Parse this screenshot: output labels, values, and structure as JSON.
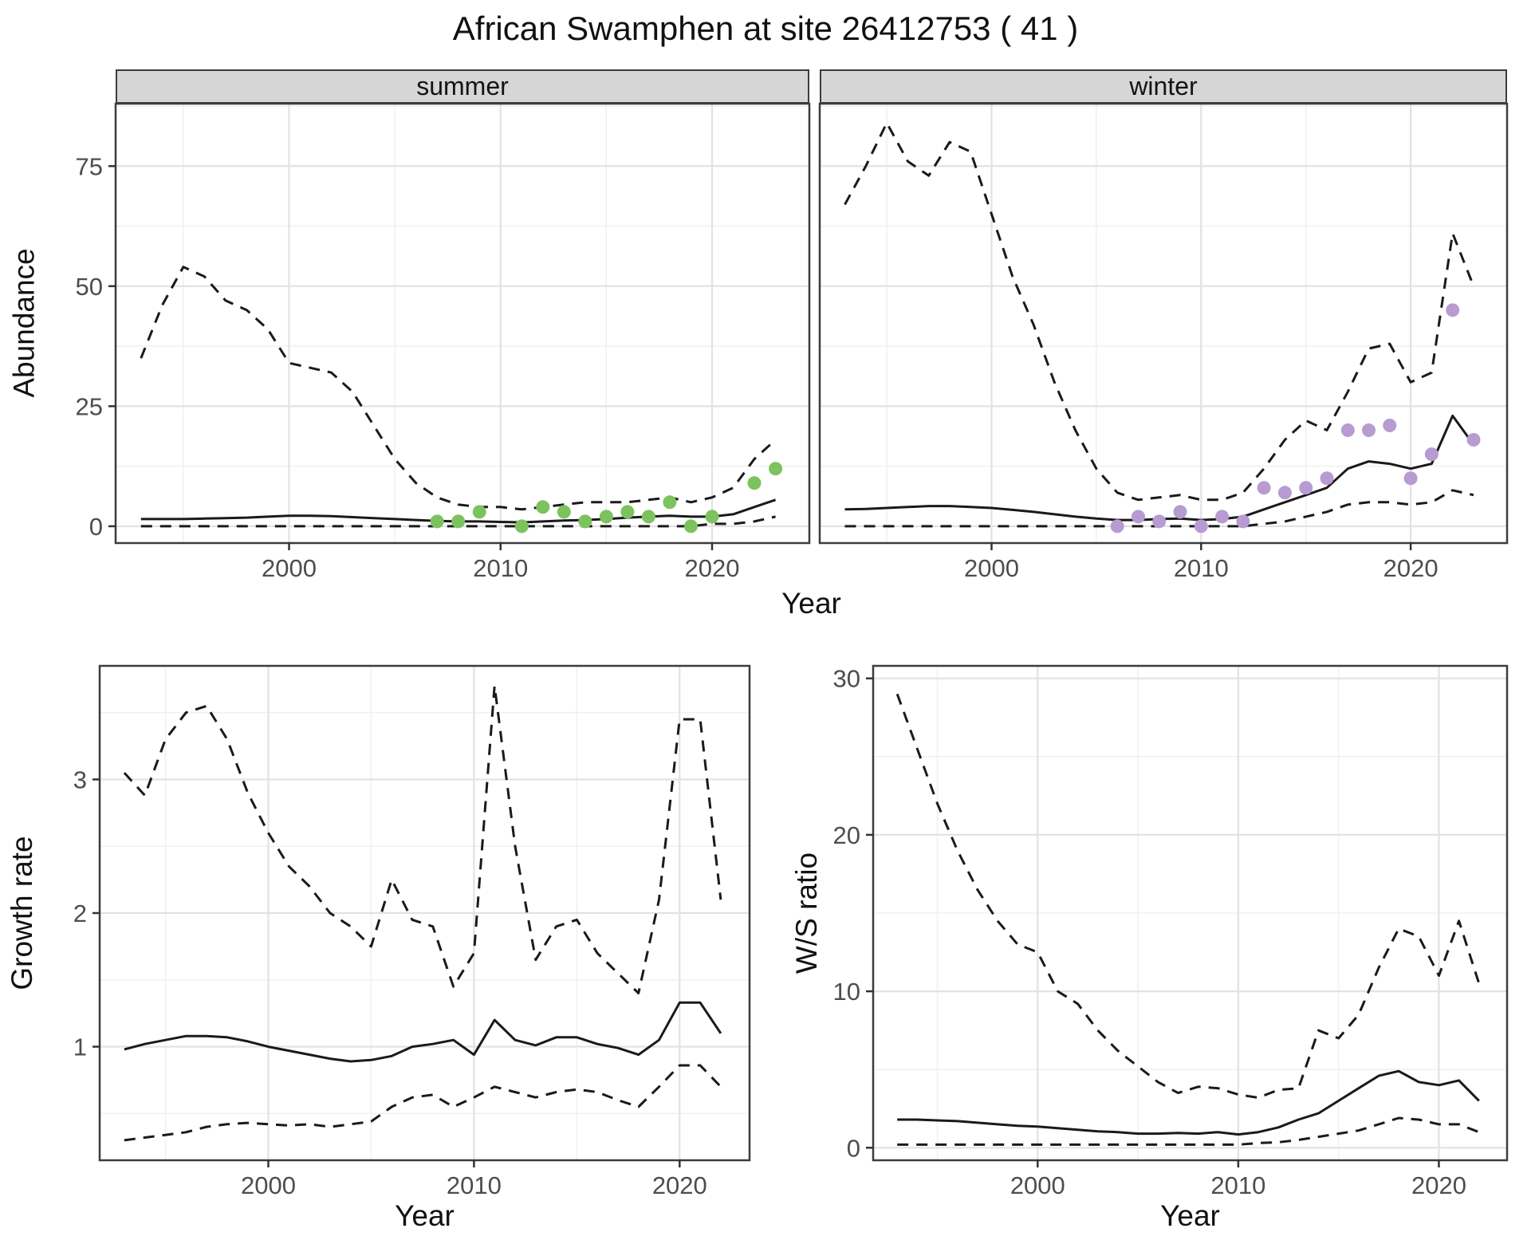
{
  "labels": {
    "title": "African Swamphen at site 26412753 ( 41 )",
    "xlabel": "Year",
    "abundance_ylabel": "Abundance",
    "growth_ylabel": "Growth rate",
    "ws_ylabel": "W/S ratio",
    "facet_summer": "summer",
    "facet_winter": "winter"
  },
  "colors": {
    "summer_points": "#7CC25E",
    "winter_points": "#B79BD1",
    "line": "#1a1a1a",
    "strip_background": "#d6d6d6",
    "grid_major": "#e2e2e2",
    "grid_minor": "#f0f0f0"
  },
  "chart_data": [
    {
      "id": "abundance-summer",
      "type": "line",
      "facet": "summer",
      "title": "summer",
      "xlabel": "Year",
      "ylabel": "Abundance",
      "xlim": [
        1991.8,
        2024.6
      ],
      "ylim": [
        -3.5,
        88
      ],
      "x_ticks": [
        2000,
        2010,
        2020
      ],
      "y_ticks": [
        0,
        25,
        50,
        75
      ],
      "grid": true,
      "x": [
        1993,
        1994,
        1995,
        1996,
        1997,
        1998,
        1999,
        2000,
        2001,
        2002,
        2003,
        2004,
        2005,
        2006,
        2007,
        2008,
        2009,
        2010,
        2011,
        2012,
        2013,
        2014,
        2015,
        2016,
        2017,
        2018,
        2019,
        2020,
        2021,
        2022,
        2023
      ],
      "series": [
        {
          "name": "median",
          "style": "solid",
          "values": [
            1.5,
            1.5,
            1.5,
            1.6,
            1.7,
            1.8,
            2.0,
            2.2,
            2.2,
            2.1,
            1.9,
            1.7,
            1.5,
            1.3,
            1.1,
            1.0,
            1.0,
            0.9,
            0.8,
            1.0,
            1.2,
            1.3,
            1.5,
            1.8,
            2.0,
            2.2,
            2.0,
            2.0,
            2.5,
            4.0,
            5.5
          ]
        },
        {
          "name": "upper-ci",
          "style": "dashed",
          "values": [
            35,
            46,
            54,
            52,
            47,
            45,
            41,
            34,
            33,
            32,
            28,
            21,
            14,
            9,
            6,
            4.5,
            4,
            4,
            3.5,
            4,
            4.5,
            5,
            5,
            5,
            5.5,
            6,
            5,
            6,
            8,
            14,
            18
          ]
        },
        {
          "name": "lower-ci",
          "style": "dashed",
          "values": [
            0,
            0,
            0,
            0,
            0,
            0,
            0,
            0,
            0,
            0,
            0,
            0,
            0,
            0,
            0,
            0,
            0,
            0,
            0,
            0,
            0,
            0,
            0,
            0,
            0,
            0,
            0,
            0.5,
            0.5,
            1,
            2
          ]
        }
      ],
      "points": {
        "name": "observed-counts-summer",
        "color": "#7CC25E",
        "x": [
          2007,
          2008,
          2009,
          2011,
          2012,
          2013,
          2014,
          2015,
          2016,
          2017,
          2018,
          2019,
          2020,
          2022,
          2023
        ],
        "y": [
          1,
          1,
          3,
          0,
          4,
          3,
          1,
          2,
          3,
          2,
          5,
          0,
          2,
          9,
          12
        ]
      }
    },
    {
      "id": "abundance-winter",
      "type": "line",
      "facet": "winter",
      "title": "winter",
      "xlabel": "Year",
      "ylabel": "Abundance",
      "xlim": [
        1991.8,
        2024.6
      ],
      "ylim": [
        -3.5,
        88
      ],
      "x_ticks": [
        2000,
        2010,
        2020
      ],
      "y_ticks": [
        0,
        25,
        50,
        75
      ],
      "grid": true,
      "x": [
        1993,
        1994,
        1995,
        1996,
        1997,
        1998,
        1999,
        2000,
        2001,
        2002,
        2003,
        2004,
        2005,
        2006,
        2007,
        2008,
        2009,
        2010,
        2011,
        2012,
        2013,
        2014,
        2015,
        2016,
        2017,
        2018,
        2019,
        2020,
        2021,
        2022,
        2023
      ],
      "series": [
        {
          "name": "median",
          "style": "solid",
          "values": [
            3.5,
            3.6,
            3.8,
            4.0,
            4.2,
            4.2,
            4.0,
            3.8,
            3.4,
            3.0,
            2.5,
            2.0,
            1.6,
            1.3,
            1.3,
            1.5,
            1.6,
            1.3,
            1.5,
            2.0,
            3.5,
            5.0,
            6.5,
            8.0,
            12.0,
            13.5,
            13.0,
            12.0,
            13.0,
            23.0,
            17.0
          ]
        },
        {
          "name": "upper-ci",
          "style": "dashed",
          "values": [
            67,
            75,
            84,
            76,
            73,
            80,
            78,
            65,
            52,
            42,
            30,
            20,
            12,
            7,
            5.5,
            6,
            6.5,
            5.5,
            5.5,
            7,
            12,
            18,
            22,
            20,
            28,
            37,
            38,
            30,
            32,
            61,
            50
          ]
        },
        {
          "name": "lower-ci",
          "style": "dashed",
          "values": [
            0,
            0,
            0,
            0,
            0,
            0,
            0,
            0,
            0,
            0,
            0,
            0,
            0,
            0,
            0,
            0,
            0,
            0,
            0,
            0,
            0.5,
            1,
            2,
            3,
            4.5,
            5,
            5,
            4.5,
            5,
            7.5,
            6.5
          ]
        }
      ],
      "points": {
        "name": "observed-counts-winter",
        "color": "#B79BD1",
        "x": [
          2006,
          2007,
          2008,
          2009,
          2010,
          2011,
          2012,
          2013,
          2014,
          2015,
          2016,
          2017,
          2018,
          2019,
          2020,
          2021,
          2022,
          2023
        ],
        "y": [
          0,
          2,
          1,
          3,
          0,
          2,
          1,
          8,
          7,
          8,
          10,
          20,
          20,
          21,
          10,
          15,
          45,
          18
        ]
      }
    },
    {
      "id": "growth-rate",
      "type": "line",
      "title": "Growth rate",
      "xlabel": "Year",
      "ylabel": "Growth rate",
      "xlim": [
        1991.8,
        2023.4
      ],
      "ylim": [
        0.15,
        3.85
      ],
      "x_ticks": [
        2000,
        2010,
        2020
      ],
      "y_ticks": [
        1,
        2,
        3
      ],
      "grid": true,
      "x": [
        1993,
        1994,
        1995,
        1996,
        1997,
        1998,
        1999,
        2000,
        2001,
        2002,
        2003,
        2004,
        2005,
        2006,
        2007,
        2008,
        2009,
        2010,
        2011,
        2012,
        2013,
        2014,
        2015,
        2016,
        2017,
        2018,
        2019,
        2020,
        2021,
        2022
      ],
      "series": [
        {
          "name": "median",
          "style": "solid",
          "values": [
            0.98,
            1.02,
            1.05,
            1.08,
            1.08,
            1.07,
            1.04,
            1.0,
            0.97,
            0.94,
            0.91,
            0.89,
            0.9,
            0.93,
            1.0,
            1.02,
            1.05,
            0.94,
            1.2,
            1.05,
            1.01,
            1.07,
            1.07,
            1.02,
            0.99,
            0.94,
            1.05,
            1.33,
            1.33,
            1.1
          ]
        },
        {
          "name": "upper-ci",
          "style": "dashed",
          "values": [
            3.05,
            2.88,
            3.3,
            3.5,
            3.55,
            3.3,
            2.9,
            2.6,
            2.35,
            2.2,
            2.0,
            1.9,
            1.75,
            2.25,
            1.95,
            1.9,
            1.45,
            1.7,
            3.7,
            2.5,
            1.65,
            1.9,
            1.95,
            1.7,
            1.55,
            1.4,
            2.1,
            3.45,
            3.45,
            2.1
          ]
        },
        {
          "name": "lower-ci",
          "style": "dashed",
          "values": [
            0.3,
            0.32,
            0.34,
            0.36,
            0.4,
            0.42,
            0.43,
            0.42,
            0.41,
            0.42,
            0.4,
            0.42,
            0.44,
            0.55,
            0.62,
            0.64,
            0.55,
            0.62,
            0.7,
            0.66,
            0.62,
            0.66,
            0.68,
            0.66,
            0.6,
            0.55,
            0.7,
            0.86,
            0.86,
            0.7
          ]
        }
      ]
    },
    {
      "id": "ws-ratio",
      "type": "line",
      "title": "W/S ratio",
      "xlabel": "Year",
      "ylabel": "W/S ratio",
      "xlim": [
        1991.8,
        2023.4
      ],
      "ylim": [
        -0.8,
        30.8
      ],
      "x_ticks": [
        2000,
        2010,
        2020
      ],
      "y_ticks": [
        0,
        10,
        20,
        30
      ],
      "grid": true,
      "x": [
        1993,
        1994,
        1995,
        1996,
        1997,
        1998,
        1999,
        2000,
        2001,
        2002,
        2003,
        2004,
        2005,
        2006,
        2007,
        2008,
        2009,
        2010,
        2011,
        2012,
        2013,
        2014,
        2015,
        2016,
        2017,
        2018,
        2019,
        2020,
        2021,
        2022
      ],
      "series": [
        {
          "name": "median",
          "style": "solid",
          "values": [
            1.8,
            1.8,
            1.75,
            1.7,
            1.6,
            1.5,
            1.4,
            1.35,
            1.25,
            1.15,
            1.05,
            1.0,
            0.9,
            0.9,
            0.95,
            0.9,
            1.0,
            0.85,
            1.0,
            1.3,
            1.8,
            2.2,
            3.0,
            3.8,
            4.6,
            4.9,
            4.2,
            4.0,
            4.3,
            3.0
          ]
        },
        {
          "name": "upper-ci",
          "style": "dashed",
          "values": [
            29,
            25.5,
            22,
            19,
            16.5,
            14.5,
            13,
            12.5,
            10,
            9.2,
            7.5,
            6.2,
            5.2,
            4.2,
            3.5,
            3.9,
            3.8,
            3.4,
            3.2,
            3.7,
            3.8,
            7.5,
            7.0,
            8.5,
            11.5,
            14.0,
            13.5,
            11.0,
            14.5,
            10.5
          ]
        },
        {
          "name": "lower-ci",
          "style": "dashed",
          "values": [
            0.2,
            0.2,
            0.2,
            0.2,
            0.2,
            0.2,
            0.2,
            0.2,
            0.2,
            0.2,
            0.2,
            0.2,
            0.2,
            0.2,
            0.2,
            0.2,
            0.2,
            0.2,
            0.3,
            0.35,
            0.5,
            0.7,
            0.9,
            1.1,
            1.5,
            1.9,
            1.8,
            1.5,
            1.5,
            1.0
          ]
        }
      ]
    }
  ]
}
